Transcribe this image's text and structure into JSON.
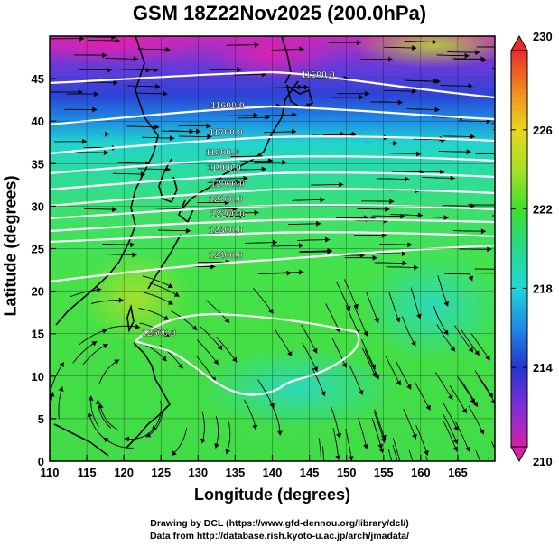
{
  "title": "GSM 18Z22Nov2025 (200.0hPa)",
  "axes": {
    "xlabel": "Longitude (degrees)",
    "ylabel": "Latitude  (degrees)",
    "xlim": [
      110,
      170
    ],
    "ylim": [
      0,
      50
    ],
    "xticks": [
      110,
      115,
      120,
      125,
      130,
      135,
      140,
      145,
      150,
      155,
      160,
      165
    ],
    "yticks": [
      0,
      5,
      10,
      15,
      20,
      25,
      30,
      35,
      40,
      45
    ]
  },
  "colorbar": {
    "min": 210,
    "max": 230,
    "tick_labels": [
      "210",
      "214",
      "218",
      "222",
      "226",
      "230"
    ],
    "colors": [
      "#d81fa6",
      "#7f2fd9",
      "#2535cf",
      "#1c8be6",
      "#1fd6d6",
      "#28d98c",
      "#3fe02c",
      "#a8e022",
      "#e8d71e",
      "#f08a1e",
      "#e82b2b"
    ]
  },
  "chart_data": {
    "type": "heatmap",
    "title": "GSM 18Z22Nov2025 (200.0hPa)",
    "xlabel": "Longitude (degrees)",
    "ylabel": "Latitude  (degrees)",
    "xlim": [
      110,
      170
    ],
    "ylim": [
      0,
      50
    ],
    "field": "temperature shading with streamlines and geopotential height contours",
    "colorbar_range": [
      210,
      230
    ],
    "contours": [
      {
        "label": "11500.0",
        "lat": 46.0
      },
      {
        "label": "11600.0",
        "lat": 42.5
      },
      {
        "label": "11700.0",
        "lat": 39.5
      },
      {
        "label": "11800.0",
        "lat": 37.0
      },
      {
        "label": "11900.0",
        "lat": 35.0
      },
      {
        "label": "12000.0",
        "lat": 33.3
      },
      {
        "label": "12100.0",
        "lat": 31.5
      },
      {
        "label": "12200.0",
        "lat": 30.2
      },
      {
        "label": "12300.0",
        "lat": 28.7
      },
      {
        "label": "12400.0",
        "lat": 26.0
      },
      {
        "label": "12500.0",
        "lat": 15.5
      }
    ]
  },
  "credits": {
    "line1": "Drawing by DCL (https://www.gfd-dennou.org/library/dcl/)",
    "line2": "Data from http://database.rish.kyoto-u.ac.jp/arch/jmadata/"
  }
}
